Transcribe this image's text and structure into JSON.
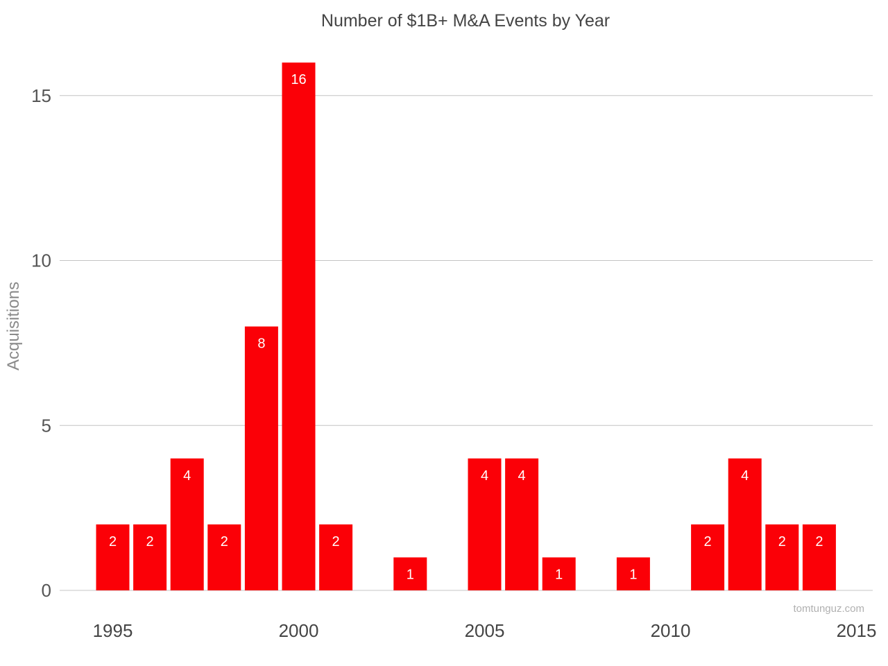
{
  "chart_data": {
    "type": "bar",
    "title": "Number of $1B+ M&A Events by Year",
    "xlabel": "",
    "ylabel": "Acquisitions",
    "x": [
      1995,
      1996,
      1997,
      1998,
      1999,
      2000,
      2001,
      2003,
      2005,
      2006,
      2007,
      2009,
      2011,
      2012,
      2013,
      2014
    ],
    "values": [
      2,
      2,
      4,
      2,
      8,
      16,
      2,
      1,
      4,
      4,
      1,
      1,
      2,
      4,
      2,
      2
    ],
    "xlim": [
      1994.0,
      2015.0
    ],
    "ylim": [
      0,
      16.3
    ],
    "x_ticks": [
      1995,
      2000,
      2005,
      2010,
      2015
    ],
    "y_ticks": [
      0,
      5,
      10,
      15
    ],
    "grid": "horizontal",
    "legend": "none",
    "bar_color": "#fb0007",
    "watermark": "tomtunguz.com"
  }
}
